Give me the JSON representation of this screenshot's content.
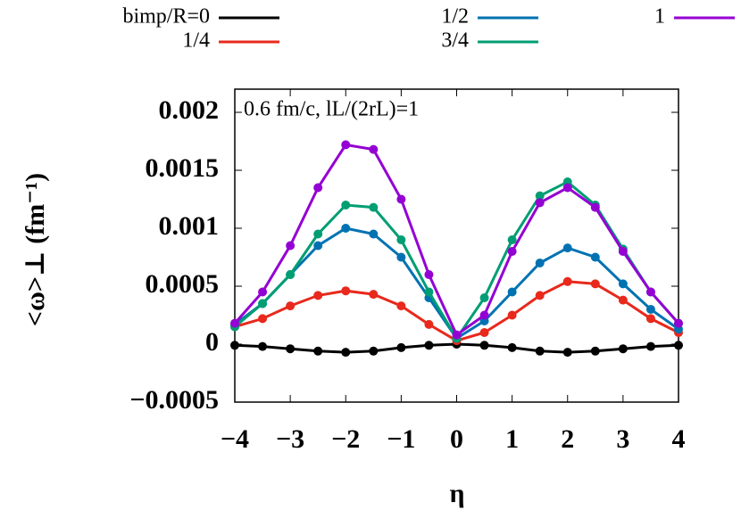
{
  "chart_data": {
    "type": "line",
    "annotation": "0.6 fm/c, lL/(2rL)=1",
    "x_label": "η",
    "y_label": "<ω>⊥ (fm⁻¹)",
    "x": [
      -4,
      -3.5,
      -3,
      -2.5,
      -2,
      -1.5,
      -1,
      -0.5,
      0,
      0.5,
      1,
      1.5,
      2,
      2.5,
      3,
      3.5,
      4
    ],
    "series": [
      {
        "name": "bimp/R=0",
        "color": "#000000",
        "values": [
          -1e-05,
          -2e-05,
          -4e-05,
          -6e-05,
          -7e-05,
          -6e-05,
          -3e-05,
          -1e-05,
          0,
          -1e-05,
          -3e-05,
          -6e-05,
          -7e-05,
          -6e-05,
          -4e-05,
          -2e-05,
          -1e-05
        ]
      },
      {
        "name": "1/4",
        "color": "#e8291c",
        "values": [
          0.00015,
          0.00022,
          0.00033,
          0.00042,
          0.00046,
          0.00043,
          0.00033,
          0.00017,
          3e-05,
          0.0001,
          0.00025,
          0.00042,
          0.00054,
          0.00052,
          0.00038,
          0.00022,
          0.0001
        ]
      },
      {
        "name": "1/2",
        "color": "#0072b2",
        "values": [
          0.00017,
          0.00035,
          0.0006,
          0.00085,
          0.001,
          0.00095,
          0.00075,
          0.0004,
          5e-05,
          0.0002,
          0.00045,
          0.0007,
          0.00083,
          0.00075,
          0.00052,
          0.0003,
          0.00013
        ]
      },
      {
        "name": "3/4",
        "color": "#009e73",
        "values": [
          0.00015,
          0.00035,
          0.0006,
          0.00095,
          0.0012,
          0.00118,
          0.0009,
          0.00045,
          5e-05,
          0.0004,
          0.0009,
          0.00128,
          0.0014,
          0.0012,
          0.00082,
          0.00045,
          0.00018
        ]
      },
      {
        "name": "1",
        "color": "#9400d3",
        "values": [
          0.00018,
          0.00045,
          0.00085,
          0.00135,
          0.00172,
          0.00168,
          0.00125,
          0.0006,
          8e-05,
          0.00025,
          0.0008,
          0.00122,
          0.00135,
          0.00118,
          0.0008,
          0.00045,
          0.00018
        ]
      }
    ],
    "xlim": [
      -4,
      4
    ],
    "xticks": [
      {
        "value": -4,
        "label": "−4"
      },
      {
        "value": -3,
        "label": "−3"
      },
      {
        "value": -2,
        "label": "−2"
      },
      {
        "value": -1,
        "label": "−1"
      },
      0,
      1,
      2,
      3,
      4
    ],
    "ylim": [
      -0.0005,
      0.0022
    ],
    "yticks": [
      {
        "value": -0.0005,
        "label": "−0.0005"
      },
      0,
      0.0005,
      0.001,
      0.0015,
      0.002
    ]
  }
}
